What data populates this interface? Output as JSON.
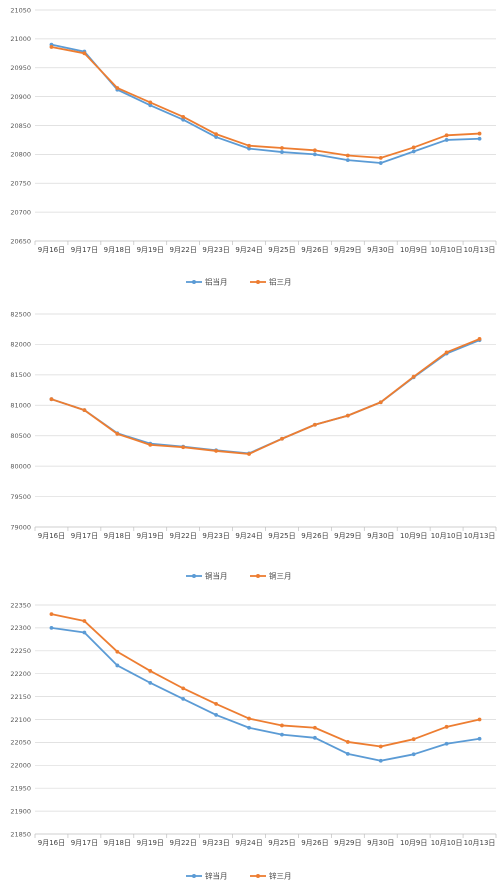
{
  "colors": {
    "series1": "#5b9bd5",
    "series2": "#ed7d31",
    "grid": "#d9d9d9",
    "axis": "#bfbfbf"
  },
  "chart_data": [
    {
      "type": "line",
      "categories": [
        "9月16日",
        "9月17日",
        "9月18日",
        "9月19日",
        "9月22日",
        "9月23日",
        "9月24日",
        "9月25日",
        "9月26日",
        "9月29日",
        "9月30日",
        "10月9日",
        "10月10日",
        "10月13日"
      ],
      "ylim": [
        20650,
        21050
      ],
      "ystep": 50,
      "grid": true,
      "legend": "bottom",
      "series": [
        {
          "name": "铝当月",
          "values": [
            20990,
            20978,
            20912,
            20885,
            20860,
            20830,
            20810,
            20804,
            20800,
            20790,
            20785,
            20805,
            20825,
            20827
          ]
        },
        {
          "name": "铝三月",
          "values": [
            20986,
            20975,
            20915,
            20890,
            20865,
            20835,
            20815,
            20811,
            20807,
            20798,
            20794,
            20812,
            20833,
            20836
          ]
        }
      ]
    },
    {
      "type": "line",
      "categories": [
        "9月16日",
        "9月17日",
        "9月18日",
        "9月19日",
        "9月22日",
        "9月23日",
        "9月24日",
        "9月25日",
        "9月26日",
        "9月29日",
        "9月30日",
        "10月9日",
        "10月10日",
        "10月13日"
      ],
      "ylim": [
        79000,
        82500
      ],
      "ystep": 500,
      "grid": true,
      "legend": "bottom",
      "series": [
        {
          "name": "铜当月",
          "values": [
            81100,
            80920,
            80540,
            80370,
            80320,
            80260,
            80210,
            80450,
            80680,
            80830,
            81050,
            81460,
            81850,
            82070
          ]
        },
        {
          "name": "铜三月",
          "values": [
            81100,
            80920,
            80530,
            80350,
            80310,
            80250,
            80200,
            80450,
            80680,
            80830,
            81050,
            81470,
            81870,
            82090
          ]
        }
      ]
    },
    {
      "type": "line",
      "categories": [
        "9月16日",
        "9月17日",
        "9月18日",
        "9月19日",
        "9月22日",
        "9月23日",
        "9月24日",
        "9月25日",
        "9月26日",
        "9月29日",
        "9月30日",
        "10月9日",
        "10月10日",
        "10月13日"
      ],
      "ylim": [
        21850,
        22350
      ],
      "ystep": 50,
      "grid": true,
      "legend": "bottom",
      "series": [
        {
          "name": "锌当月",
          "values": [
            22300,
            22290,
            22218,
            22180,
            22145,
            22110,
            22082,
            22067,
            22060,
            22025,
            22010,
            22024,
            22047,
            22058
          ]
        },
        {
          "name": "锌三月",
          "values": [
            22330,
            22315,
            22248,
            22206,
            22168,
            22134,
            22102,
            22087,
            22082,
            22051,
            22041,
            22057,
            22084,
            22100
          ]
        }
      ]
    }
  ]
}
